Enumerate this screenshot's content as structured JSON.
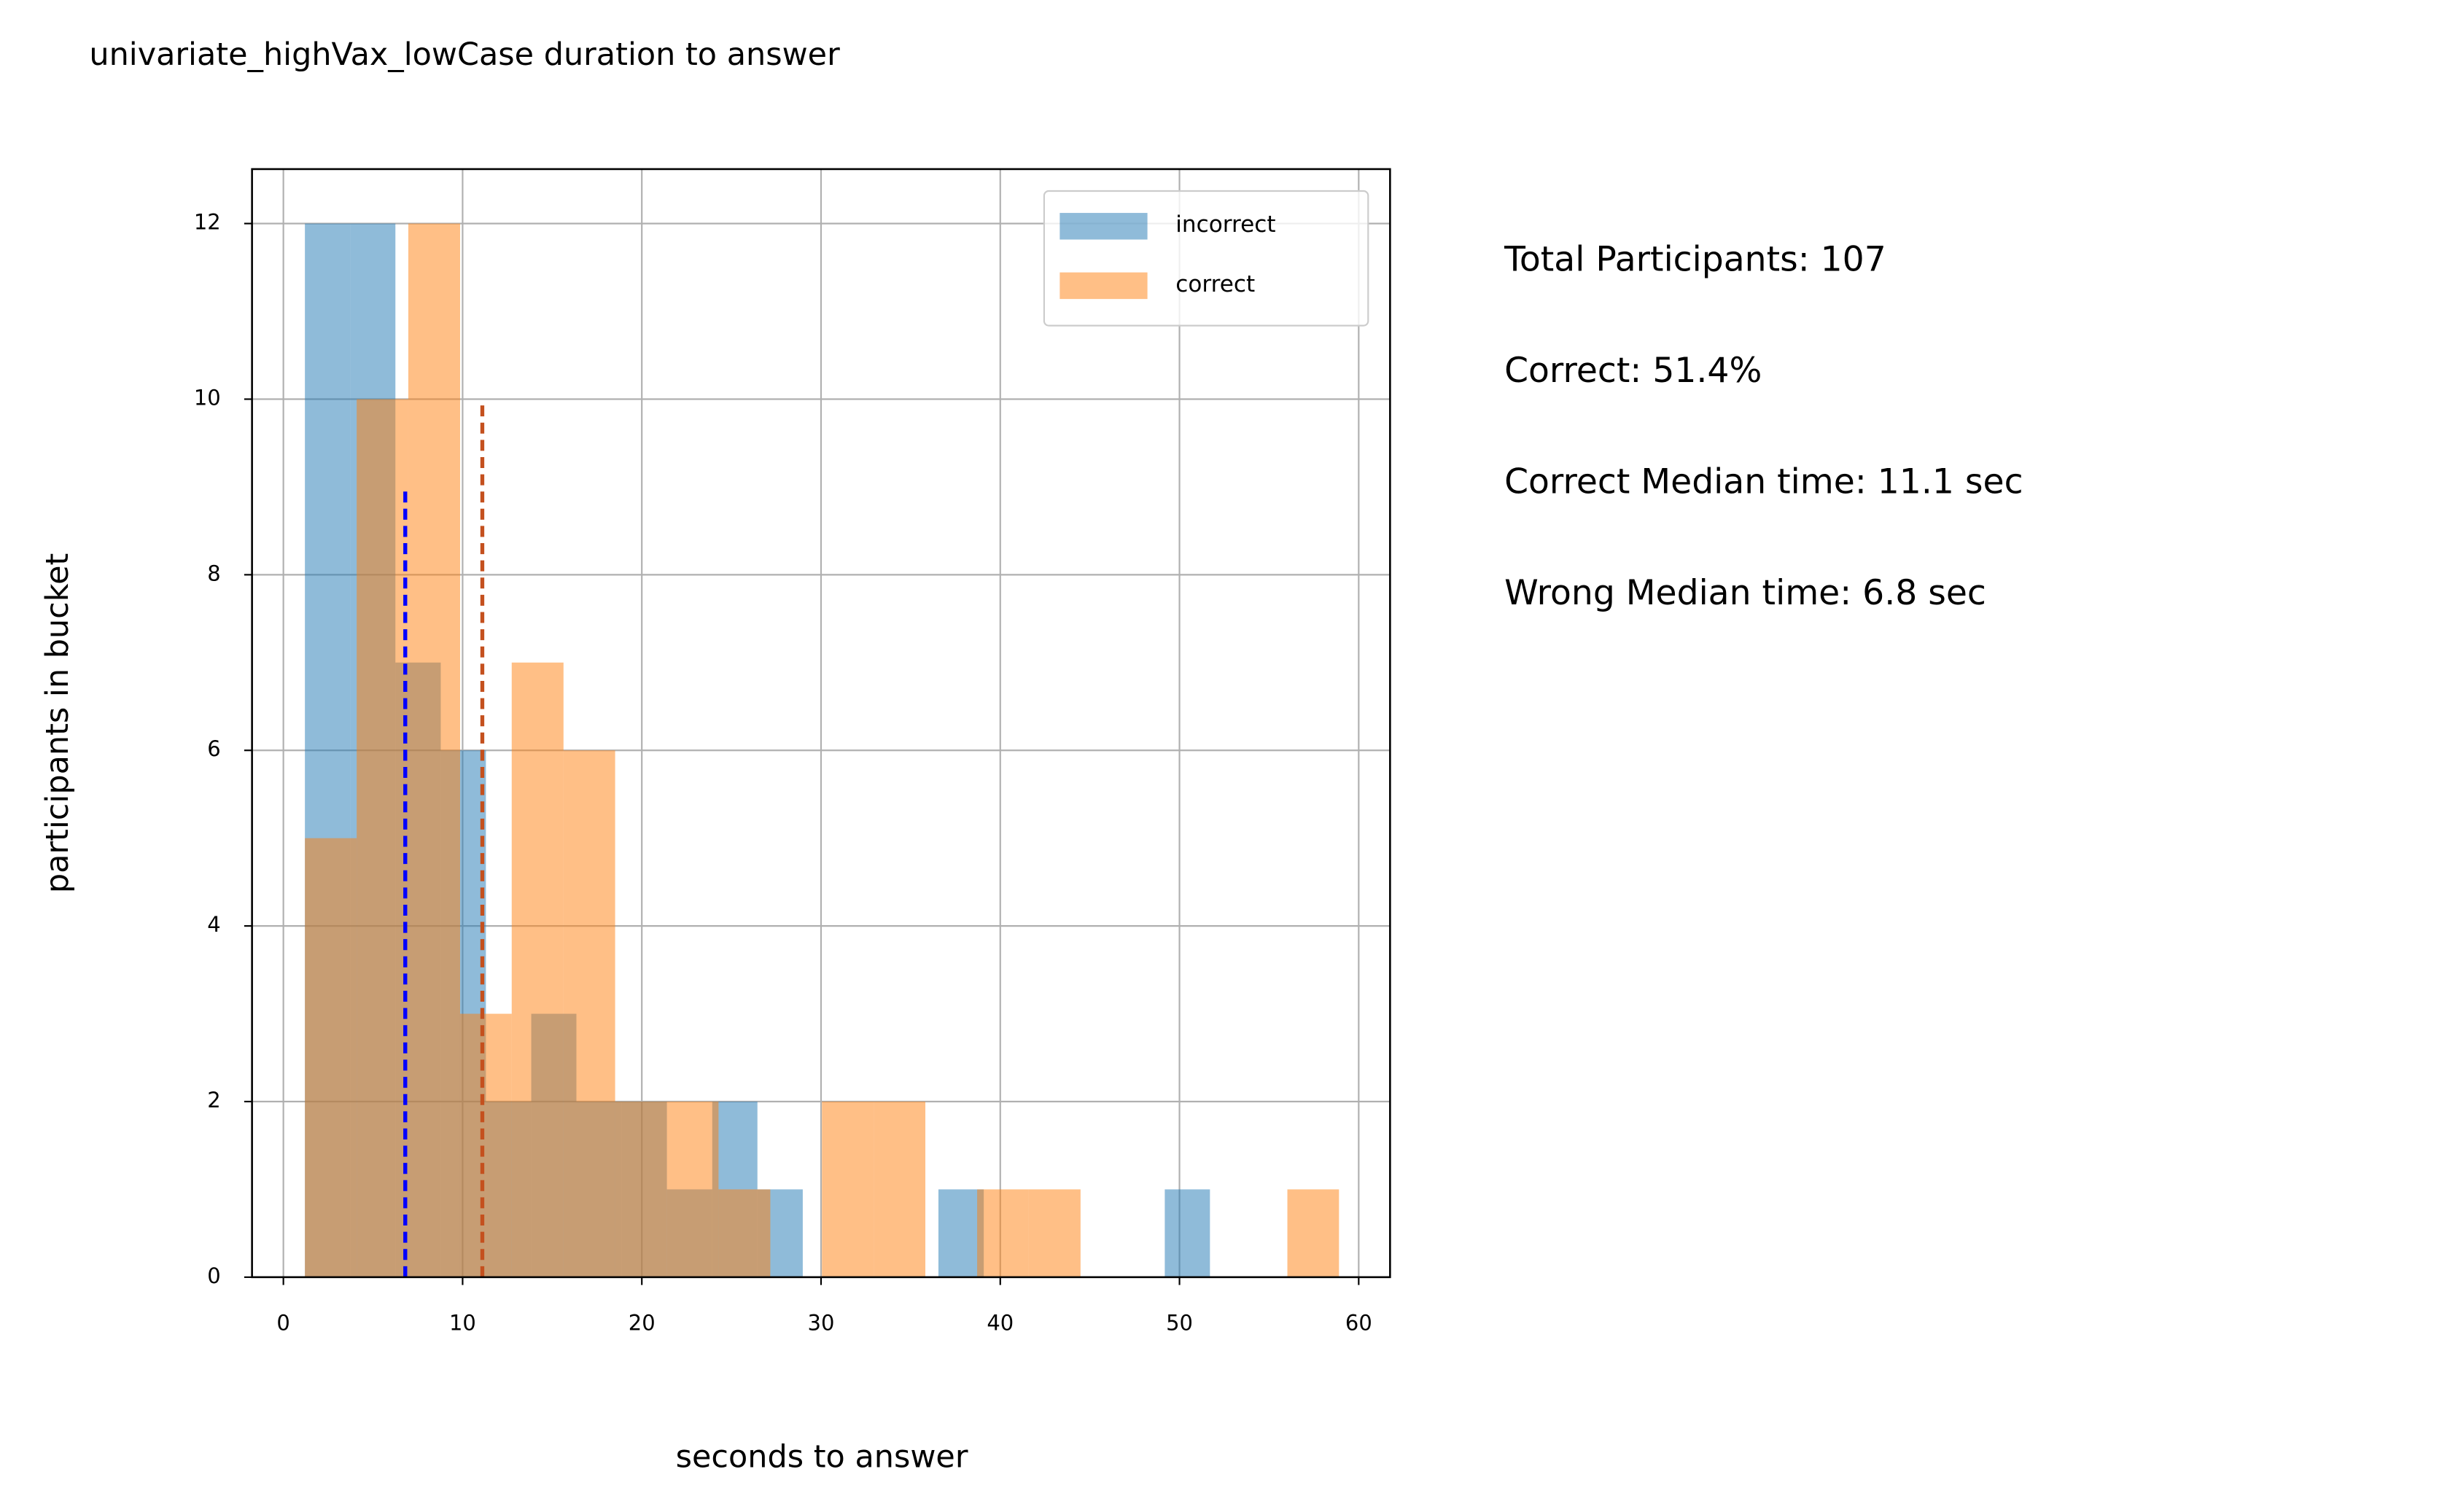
{
  "chart_data": {
    "type": "histogram",
    "title": "univariate_highVax_lowCase duration to answer",
    "xlabel": "seconds to answer",
    "ylabel": "participants in bucket",
    "xlim": [
      -1.75,
      61.75
    ],
    "ylim": [
      0,
      12.62
    ],
    "xticks": [
      0,
      10,
      20,
      30,
      40,
      50,
      60
    ],
    "yticks": [
      0,
      2,
      4,
      6,
      8,
      10,
      12
    ],
    "grid": true,
    "legend": "upper right",
    "series": [
      {
        "name": "incorrect",
        "color": "#1f77b4",
        "bins": [
          1.2,
          3.73,
          6.25,
          8.78,
          11.3,
          13.83,
          16.35,
          18.88,
          21.4,
          23.93,
          26.45,
          28.98,
          31.5,
          34.03,
          36.55,
          39.08,
          41.6,
          44.13,
          46.65,
          49.18,
          51.7
        ],
        "counts": [
          12,
          12,
          7,
          6,
          2,
          3,
          2,
          2,
          1,
          2,
          1,
          0,
          0,
          0,
          1,
          0,
          0,
          0,
          0,
          1
        ]
      },
      {
        "name": "correct",
        "color": "#ff7f0e",
        "bins": [
          1.2,
          4.09,
          6.97,
          9.86,
          12.74,
          15.63,
          18.51,
          21.4,
          24.28,
          27.17,
          30.05,
          32.94,
          35.82,
          38.71,
          41.59,
          44.48,
          47.36,
          50.25,
          53.13,
          56.02,
          58.9
        ],
        "counts": [
          5,
          10,
          12,
          3,
          7,
          6,
          2,
          2,
          1,
          0,
          2,
          2,
          0,
          1,
          1,
          0,
          0,
          0,
          0,
          1
        ]
      }
    ],
    "median_lines": [
      {
        "x": 6.8,
        "top": 9,
        "color": "#0000ff"
      },
      {
        "x": 11.1,
        "top": 10,
        "color": "#c4501e"
      }
    ],
    "annotations": [
      "Total Participants: 107",
      "Correct: 51.4%",
      "Correct Median time: 11.1 sec",
      "Wrong Median time: 6.8 sec"
    ]
  }
}
